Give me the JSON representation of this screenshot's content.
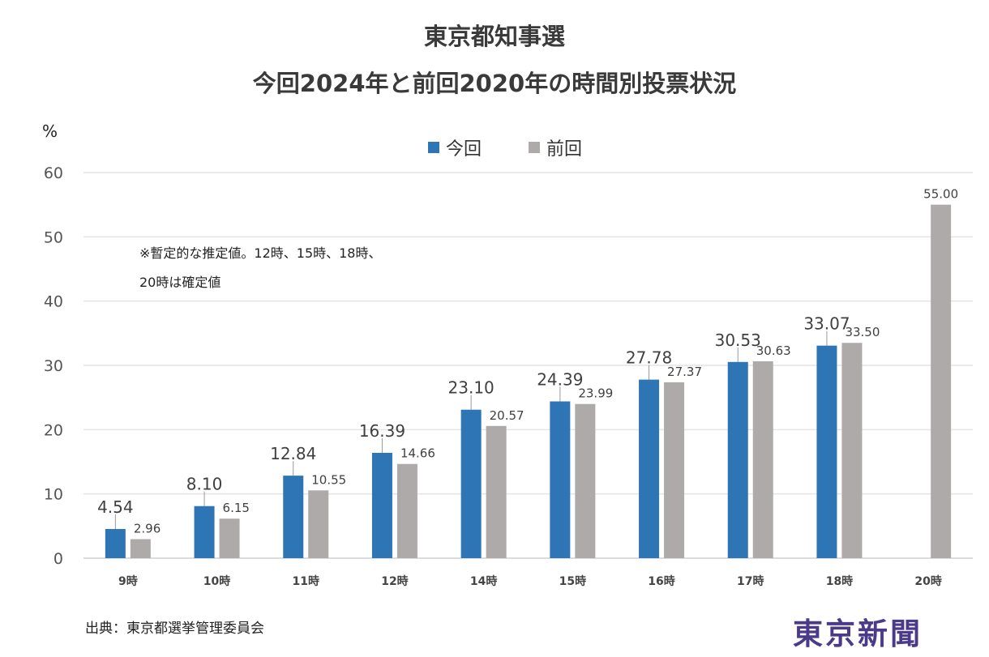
{
  "chart_data": {
    "type": "bar",
    "title": "東京都知事選",
    "subtitle": "今回2024年と前回2020年の時間別投票状況",
    "ylabel": "%",
    "xlabel": "",
    "ylim": [
      0,
      60
    ],
    "yticks": [
      0,
      10,
      20,
      30,
      40,
      50,
      60
    ],
    "grid": true,
    "legend_position": "top-center",
    "categories": [
      "9時",
      "10時",
      "11時",
      "12時",
      "14時",
      "15時",
      "16時",
      "17時",
      "18時",
      "20時"
    ],
    "series": [
      {
        "name": "今回",
        "color": "#2e75b6",
        "values": [
          4.54,
          8.1,
          12.84,
          16.39,
          23.1,
          24.39,
          27.78,
          30.53,
          33.07,
          null
        ],
        "labels": [
          "4.54",
          "8.10",
          "12.84",
          "16.39",
          "23.10",
          "24.39",
          "27.78",
          "30.53",
          "33.07",
          null
        ]
      },
      {
        "name": "前回",
        "color": "#aeaaaa",
        "values": [
          2.96,
          6.15,
          10.55,
          14.66,
          20.57,
          23.99,
          27.37,
          30.63,
          33.5,
          55.0
        ],
        "labels": [
          "2.96",
          "6.15",
          "10.55",
          "14.66",
          "20.57",
          "23.99",
          "27.37",
          "30.63",
          "33.50",
          "55.00"
        ]
      }
    ],
    "annotations": [
      "※暫定的な推定値。12時、15時、18時、",
      "20時は確定値"
    ]
  },
  "source": "出典：東京都選挙管理委員会",
  "logo": "東京新聞"
}
